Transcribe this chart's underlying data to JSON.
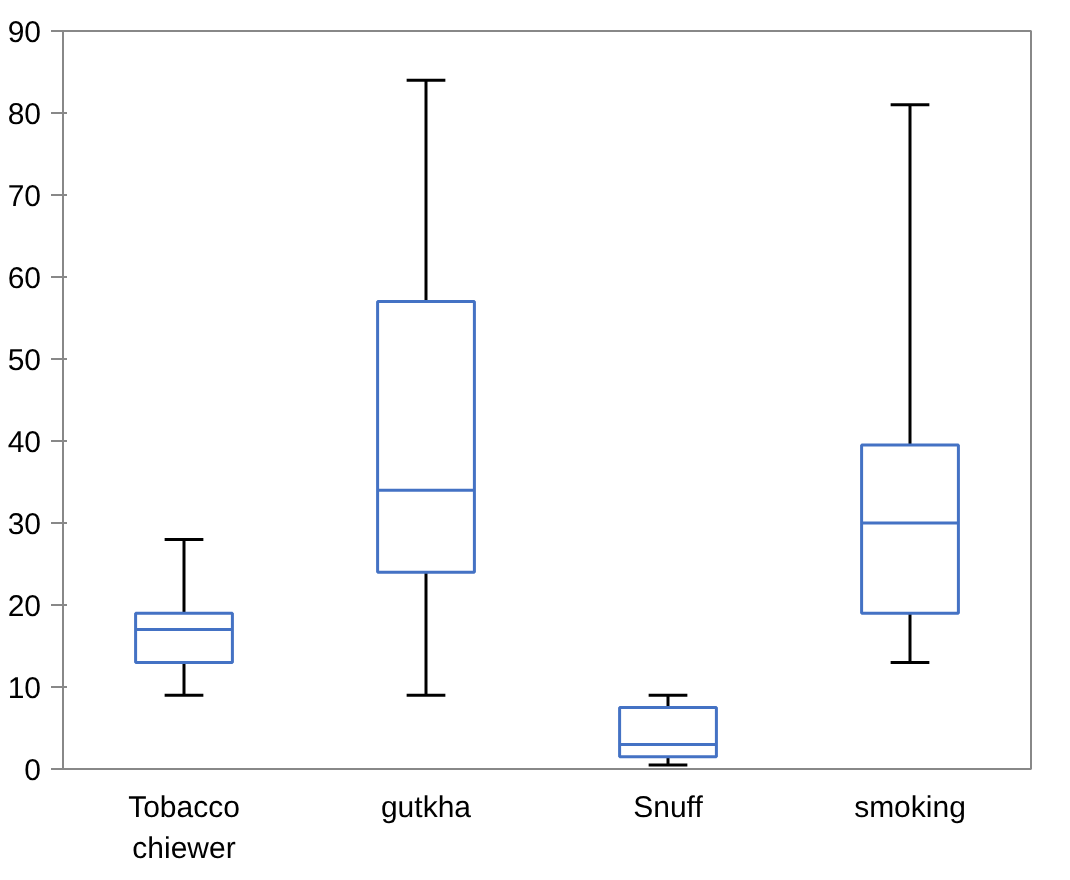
{
  "chart_data": {
    "type": "box",
    "categories": [
      "Tobacco chiewer",
      "gutkha",
      "Snuff",
      "smoking"
    ],
    "boxes": [
      {
        "low": 9,
        "q1": 13,
        "median": 17,
        "q3": 19,
        "high": 28
      },
      {
        "low": 9,
        "q1": 24,
        "median": 34,
        "q3": 57,
        "high": 84
      },
      {
        "low": 0.5,
        "q1": 1.5,
        "median": 3,
        "q3": 7.5,
        "high": 9
      },
      {
        "low": 13,
        "q1": 19,
        "median": 30,
        "q3": 39.5,
        "high": 81
      }
    ],
    "color": "#4472c4",
    "ylim": [
      0,
      90
    ],
    "yticks": [
      0,
      10,
      20,
      30,
      40,
      50,
      60,
      70,
      80,
      90
    ],
    "grid": false
  }
}
